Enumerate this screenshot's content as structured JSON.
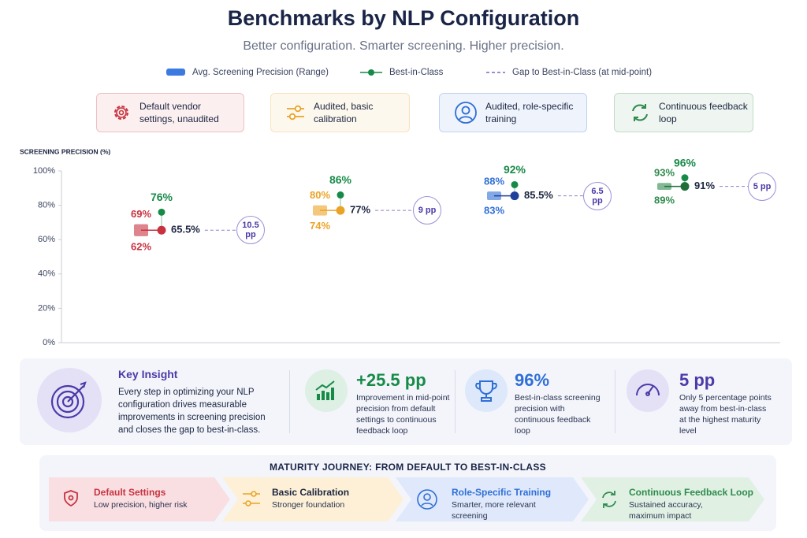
{
  "chart_data": {
    "type": "range",
    "title": "Benchmarks by NLP Configuration",
    "subtitle": "Better configuration. Smarter screening. Higher precision.",
    "y_label": "SCREENING PRECISION (%)",
    "categories": [
      "Default vendor settings, unaudited",
      "Audited, basic calibration",
      "Audited, role-specific training",
      "Continuous feedback loop"
    ],
    "category_colors": [
      "#c8323f",
      "#eba326",
      "#2f6fd6",
      "#2f8a4c"
    ],
    "ylim": [
      0,
      100
    ],
    "yticks": [
      {
        "value": 0,
        "label": "0%"
      },
      {
        "value": 20,
        "label": "20%"
      },
      {
        "value": 40,
        "label": "40%"
      },
      {
        "value": 60,
        "label": "60%"
      },
      {
        "value": 80,
        "label": "80%"
      },
      {
        "value": 100,
        "label": "100%"
      }
    ],
    "series": [
      {
        "name": "Avg. Screening Precision (Range)",
        "color": "#3b7be0",
        "low": [
          62,
          74,
          83,
          89
        ],
        "low_labels": [
          "62%",
          "74%",
          "83%",
          "89%"
        ],
        "high": [
          69,
          80,
          88,
          93
        ],
        "high_labels": [
          "69%",
          "80%",
          "88%",
          "93%"
        ],
        "mid": [
          65.5,
          77,
          85.5,
          91
        ],
        "mid_labels": [
          "65.5%",
          "77%",
          "85.5%",
          "91%"
        ]
      },
      {
        "name": "Best-in-Class",
        "color": "#178a48",
        "values": [
          76,
          86,
          92,
          96
        ],
        "value_labels": [
          "76%",
          "86%",
          "92%",
          "96%"
        ]
      },
      {
        "name": "Gap to Best-in-Class (at mid-point)",
        "color": "#5b4bb5",
        "values": [
          10.5,
          9,
          6.5,
          5
        ],
        "value_labels": [
          "10.5 pp",
          "9 pp",
          "6.5 pp",
          "5 pp"
        ]
      }
    ]
  },
  "insight": {
    "title": "Key Insight",
    "text": "Every step in optimizing your NLP configuration drives measurable improvements in screening precision and closes the gap to best-in-class."
  },
  "stats": [
    {
      "value": "+25.5 pp",
      "text": "Improvement in mid-point precision from default settings to continuous feedback loop"
    },
    {
      "value": "96%",
      "text": "Best-in-class screening precision with continuous feedback loop"
    },
    {
      "value": "5 pp",
      "text": "Only 5 percentage points away from best-in-class at the highest maturity level"
    }
  ],
  "journey": {
    "title": "MATURITY JOURNEY: FROM DEFAULT TO BEST-IN-CLASS",
    "steps": [
      {
        "title": "Default Settings",
        "text": "Low precision, higher risk"
      },
      {
        "title": "Basic Calibration",
        "text": "Stronger foundation"
      },
      {
        "title": "Role-Specific Training",
        "text": "Smarter, more relevant screening"
      },
      {
        "title": "Continuous Feedback Loop",
        "text": "Sustained accuracy, maximum impact"
      }
    ]
  }
}
